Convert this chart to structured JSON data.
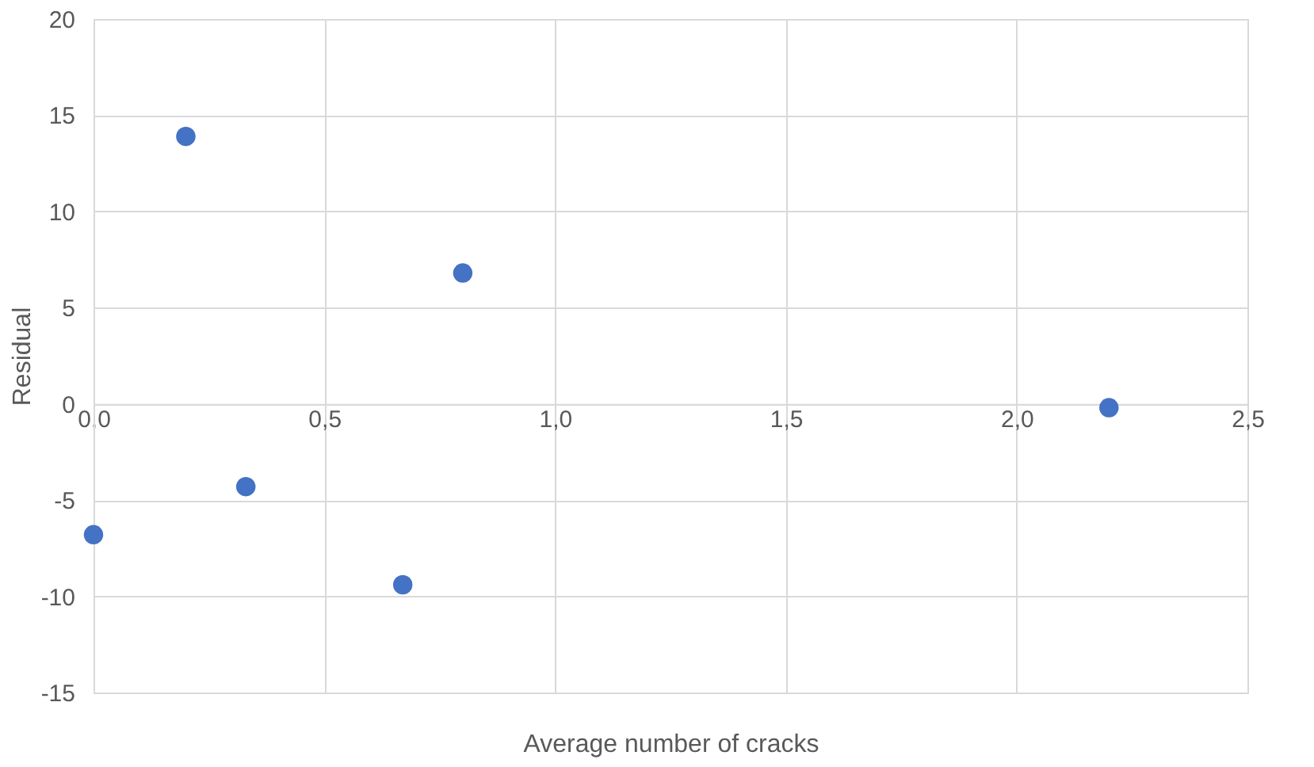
{
  "chart_data": {
    "type": "scatter",
    "xlabel": "Average number of cracks",
    "ylabel": "Residual",
    "x": [
      0,
      0.2,
      0.33,
      0.67,
      0.8,
      2.2
    ],
    "series": [
      {
        "color": "#4472c4",
        "values": [
          -6.8,
          13.9,
          -4.3,
          -9.4,
          6.8,
          -0.2
        ]
      }
    ],
    "xlim": [
      0,
      2.5
    ],
    "xticks": [
      {
        "value": 0,
        "label": "0,0"
      },
      {
        "value": 0.5,
        "label": "0,5"
      },
      {
        "value": 1,
        "label": "1,0"
      },
      {
        "value": 1.5,
        "label": "1,5"
      },
      {
        "value": 2,
        "label": "2,0"
      },
      {
        "value": 2.5,
        "label": "2,5"
      }
    ],
    "ylim": [
      -15,
      20
    ],
    "yticks": [
      -15,
      -10,
      -5,
      0,
      5,
      10,
      15,
      20
    ],
    "grid": true,
    "marker": "circle"
  }
}
